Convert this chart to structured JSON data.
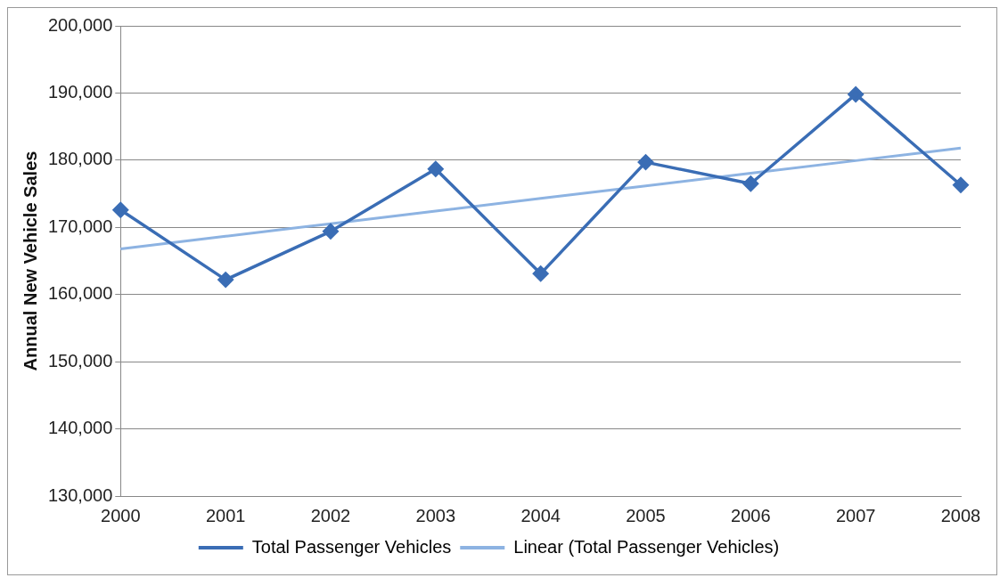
{
  "chart_data": {
    "type": "line",
    "ylabel": "Annual New Vehicle Sales",
    "categories": [
      "2000",
      "2001",
      "2002",
      "2003",
      "2004",
      "2005",
      "2006",
      "2007",
      "2008"
    ],
    "series": [
      {
        "name": "Total Passenger Vehicles",
        "color": "#3a6db5",
        "marker": "diamond",
        "values": [
          172600,
          162200,
          169400,
          178700,
          163100,
          179700,
          176500,
          189800,
          176300
        ]
      },
      {
        "name": "Linear (Total Passenger Vehicles)",
        "color": "#8db3e2",
        "marker": "none",
        "values": [
          166800,
          168680,
          170550,
          172430,
          174300,
          176180,
          178050,
          179930,
          181800
        ]
      }
    ],
    "ylim": [
      130000,
      200000
    ],
    "yticks": [
      {
        "value": 130000,
        "label": "130,000"
      },
      {
        "value": 140000,
        "label": "140,000"
      },
      {
        "value": 150000,
        "label": "150,000"
      },
      {
        "value": 160000,
        "label": "160,000"
      },
      {
        "value": 170000,
        "label": "170,000"
      },
      {
        "value": 180000,
        "label": "180,000"
      },
      {
        "value": 190000,
        "label": "190,000"
      },
      {
        "value": 200000,
        "label": "200,000"
      }
    ],
    "grid": "y",
    "legend": "bottom"
  }
}
